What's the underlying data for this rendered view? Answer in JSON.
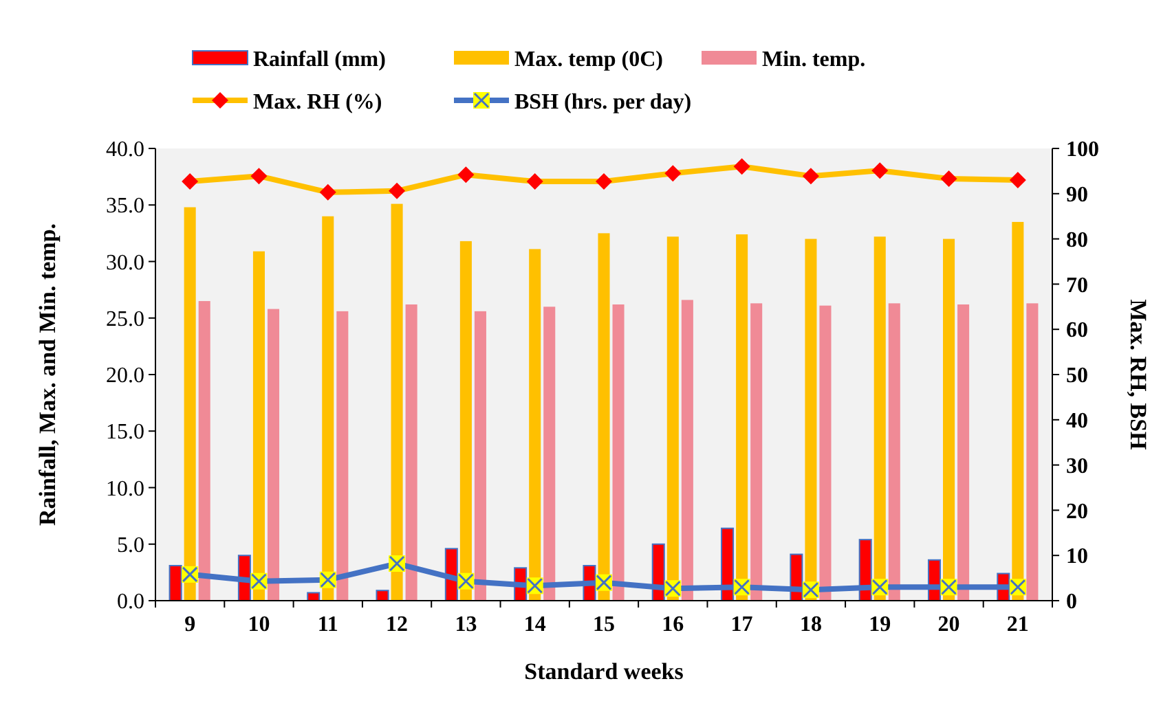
{
  "chart_data": {
    "type": "bar",
    "xlabel": "Standard weeks",
    "ylabel": "Rainfall, Max. and Min. temp.",
    "y2label": "Max. RH, BSH",
    "categories": [
      "9",
      "10",
      "11",
      "12",
      "13",
      "14",
      "15",
      "16",
      "17",
      "18",
      "19",
      "20",
      "21"
    ],
    "series": [
      {
        "name": "Rainfall (mm)",
        "color": "#ff0000",
        "values": [
          3.1,
          4.0,
          0.7,
          0.9,
          4.6,
          2.9,
          3.1,
          5.0,
          6.4,
          4.1,
          5.4,
          3.6,
          2.4
        ]
      },
      {
        "name": "Max. temp (0C)",
        "color": "#ffc000",
        "values": [
          34.8,
          30.9,
          34.0,
          35.1,
          31.8,
          31.1,
          32.5,
          32.2,
          32.4,
          32.0,
          32.2,
          32.0,
          33.5
        ]
      },
      {
        "name": "Min. temp.",
        "color": "#f08a96",
        "values": [
          26.5,
          25.8,
          25.6,
          26.2,
          25.6,
          26.0,
          26.2,
          26.6,
          26.3,
          26.1,
          26.3,
          26.2,
          26.3
        ]
      },
      {
        "name": "Max. RH (%)",
        "type": "line",
        "axis": "y2",
        "color": "#ffc000",
        "marker": "diamond",
        "values": [
          92.7,
          93.9,
          90.3,
          90.6,
          94.2,
          92.7,
          92.7,
          94.5,
          96,
          93.9,
          95.1,
          93.3,
          93.0
        ]
      },
      {
        "name": "BSH (hrs. per day)",
        "type": "line",
        "axis": "y2",
        "color": "#4472c4",
        "marker": "cross",
        "values": [
          5.8,
          4.3,
          4.6,
          8.2,
          4.3,
          3.3,
          4.0,
          2.7,
          3.0,
          2.4,
          3.0,
          3.0,
          3.0
        ]
      }
    ],
    "ylim": [
      0,
      40
    ],
    "yticks": [
      {
        "value": 0,
        "label": "0.0"
      },
      {
        "value": 5,
        "label": "5.0"
      },
      {
        "value": 10,
        "label": "10.0"
      },
      {
        "value": 15,
        "label": "15.0"
      },
      {
        "value": 20,
        "label": "20.0"
      },
      {
        "value": 25,
        "label": "25.0"
      },
      {
        "value": 30,
        "label": "30.0"
      },
      {
        "value": 35,
        "label": "35.0"
      },
      {
        "value": 40,
        "label": "40.0"
      }
    ],
    "y2lim": [
      0,
      100
    ],
    "y2ticks": [
      0,
      10,
      20,
      30,
      40,
      50,
      60,
      70,
      80,
      90,
      100
    ],
    "legend": "top",
    "grid": false
  }
}
